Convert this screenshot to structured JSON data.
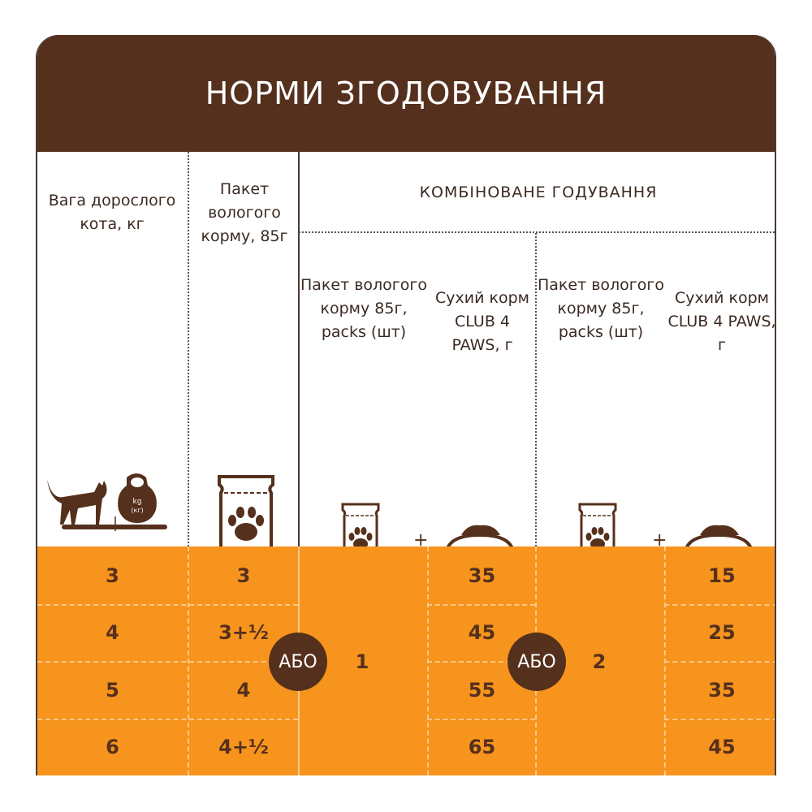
{
  "title": "НОРМИ ЗГОДОВУВАННЯ",
  "headers": {
    "weight": "Вага дорослого кота, кг",
    "pack": "Пакет вологого корму, 85г",
    "combined": "КОМБІНОВАНЕ ГОДУВАННЯ",
    "combo_pack_1": "Пакет вологого корму 85г, packs (шт)",
    "combo_dry_1": "Сухий корм CLUB 4 PAWS, г",
    "combo_pack_2": "Пакет вологого корму 85г, packs (шт)",
    "combo_dry_2": "Сухий корм CLUB 4 PAWS, г"
  },
  "icons": {
    "weight": "cat-on-scale-icon",
    "weight_label": "kg (кг)",
    "pack": "wet-food-pouch-icon",
    "dry": "food-bowl-icon"
  },
  "plus": "+",
  "or": "АБО",
  "combo_packs": [
    "1",
    "2"
  ],
  "rows": [
    {
      "weight": "3",
      "pack": "3",
      "dry1": "35",
      "dry2": "15"
    },
    {
      "weight": "4",
      "pack": "3+½",
      "dry1": "45",
      "dry2": "25"
    },
    {
      "weight": "5",
      "pack": "4",
      "dry1": "55",
      "dry2": "35"
    },
    {
      "weight": "6",
      "pack": "4+½",
      "dry1": "65",
      "dry2": "45"
    }
  ],
  "colors": {
    "brown": "#55301c",
    "orange": "#f7941d"
  }
}
